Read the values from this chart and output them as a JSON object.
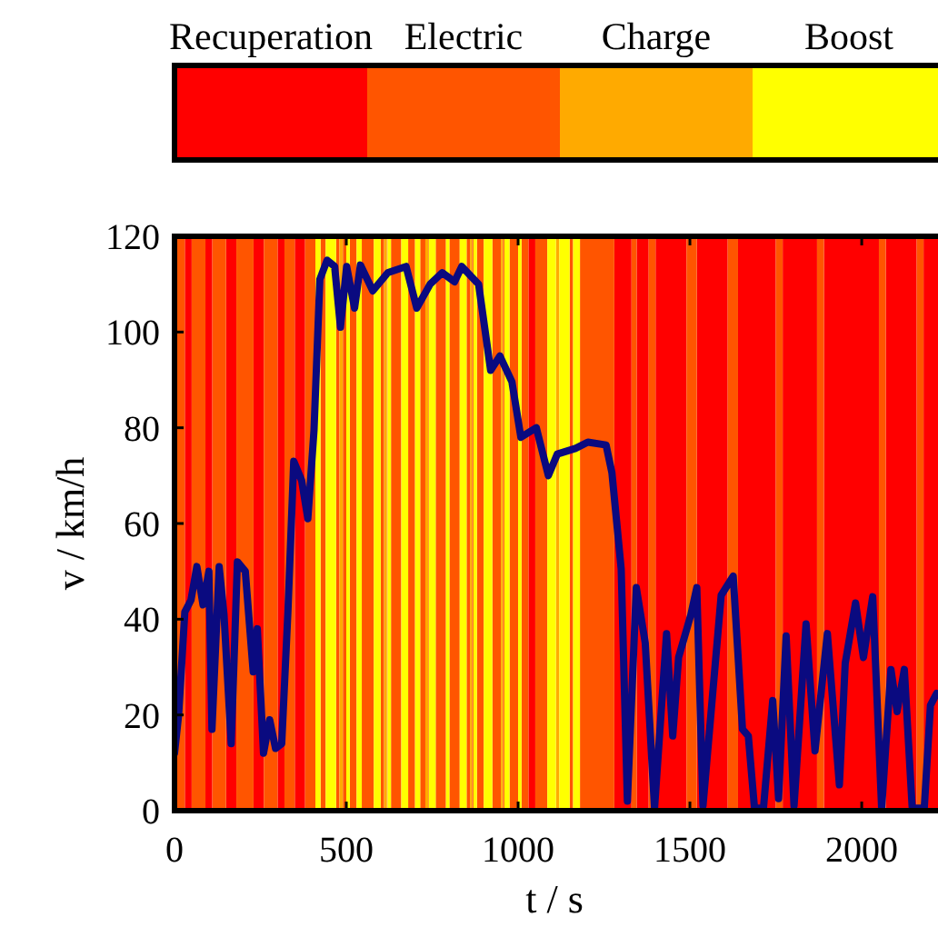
{
  "chart_data": {
    "type": "line",
    "xlabel": "t / s",
    "ylabel": "v / km/h",
    "xlim": [
      0,
      2222
    ],
    "ylim": [
      0,
      120
    ],
    "xticks": [
      0,
      500,
      1000,
      1500,
      2000
    ],
    "yticks": [
      0,
      20,
      40,
      60,
      80,
      100,
      120
    ],
    "line_style": "solid",
    "marker": "none",
    "clim": [
      0.5,
      4.5
    ],
    "cticks": [
      {
        "value": 1,
        "label": "Recuperation"
      },
      {
        "value": 2,
        "label": "Electric"
      },
      {
        "value": 3,
        "label": "Charge"
      },
      {
        "value": 4,
        "label": "Boost"
      }
    ],
    "colors": [
      "#ff0000",
      "#ff5500",
      "#ffaa00",
      "#ffff00"
    ],
    "series": [
      {
        "color": "#0a0a80",
        "x": [
          0,
          12,
          30,
          48,
          65,
          83,
          100,
          109,
          130,
          144,
          165,
          183,
          206,
          229,
          241,
          259,
          277,
          294,
          312,
          330,
          347,
          370,
          388,
          406,
          423,
          444,
          466,
          483,
          501,
          524,
          541,
          577,
          621,
          674,
          705,
          744,
          779,
          815,
          836,
          885,
          920,
          947,
          982,
          1008,
          1053,
          1088,
          1114,
          1167,
          1203,
          1256,
          1273,
          1300,
          1318,
          1344,
          1370,
          1397,
          1432,
          1450,
          1467,
          1503,
          1520,
          1538,
          1591,
          1626,
          1653,
          1670,
          1688,
          1714,
          1741,
          1758,
          1780,
          1803,
          1838,
          1864,
          1900,
          1935,
          1952,
          1982,
          2005,
          2032,
          2058,
          2085,
          2103,
          2124,
          2147,
          2182,
          2200,
          2218
        ],
        "values": [
          12,
          20,
          41.5,
          44,
          51,
          43,
          50,
          17,
          51,
          41,
          14,
          52,
          50,
          29,
          38,
          12,
          19,
          13,
          14,
          41.5,
          73,
          69,
          61,
          79.5,
          111,
          115,
          113.7,
          101,
          113.7,
          105,
          114,
          108.6,
          112.4,
          113.7,
          105,
          110,
          112.4,
          110.5,
          113.7,
          110,
          92,
          95,
          89.6,
          78,
          80,
          70,
          74.5,
          75.7,
          77,
          76.4,
          70.6,
          50.5,
          2,
          46.6,
          35,
          0.5,
          37,
          15.6,
          32,
          41,
          46.6,
          1,
          45,
          49,
          17,
          15.6,
          0.5,
          0.5,
          23,
          2.5,
          36.5,
          1,
          39,
          12.5,
          37,
          5.4,
          30.8,
          43.4,
          32,
          44.7,
          0.5,
          29.5,
          20.7,
          29.5,
          0.5,
          0.5,
          22,
          24.5
        ]
      }
    ],
    "bands": [
      {
        "axis": "x",
        "from": 30,
        "to": 50,
        "color": "#ff0000"
      },
      {
        "axis": "x",
        "from": 90,
        "to": 110,
        "color": "#ff0000"
      },
      {
        "axis": "x",
        "from": 150,
        "to": 180,
        "color": "#ff0000"
      },
      {
        "axis": "x",
        "from": 230,
        "to": 260,
        "color": "#ff0000"
      },
      {
        "axis": "x",
        "from": 300,
        "to": 320,
        "color": "#ff0000"
      },
      {
        "axis": "x",
        "from": 350,
        "to": 380,
        "color": "#ff0000"
      },
      {
        "axis": "x",
        "from": 1030,
        "to": 1050,
        "color": "#ff0000"
      },
      {
        "axis": "x",
        "from": 1280,
        "to": 1330,
        "color": "#ff0000"
      },
      {
        "axis": "x",
        "from": 1345,
        "to": 1380,
        "color": "#ff0000"
      },
      {
        "axis": "x",
        "from": 1400,
        "to": 1490,
        "color": "#ff0000"
      },
      {
        "axis": "x",
        "from": 1520,
        "to": 1610,
        "color": "#ff0000"
      },
      {
        "axis": "x",
        "from": 1640,
        "to": 1750,
        "color": "#ff0000"
      },
      {
        "axis": "x",
        "from": 1770,
        "to": 1870,
        "color": "#ff0000"
      },
      {
        "axis": "x",
        "from": 1890,
        "to": 2050,
        "color": "#ff0000"
      },
      {
        "axis": "x",
        "from": 2070,
        "to": 2160,
        "color": "#ff0000"
      },
      {
        "axis": "x",
        "from": 2180,
        "to": 2222,
        "color": "#ff0000"
      },
      {
        "axis": "x",
        "from": 0,
        "to": 30,
        "color": "#ff5500"
      },
      {
        "axis": "x",
        "from": 50,
        "to": 90,
        "color": "#ff5500"
      },
      {
        "axis": "x",
        "from": 110,
        "to": 150,
        "color": "#ff5500"
      },
      {
        "axis": "x",
        "from": 180,
        "to": 230,
        "color": "#ff5500"
      },
      {
        "axis": "x",
        "from": 260,
        "to": 300,
        "color": "#ff5500"
      },
      {
        "axis": "x",
        "from": 320,
        "to": 350,
        "color": "#ff5500"
      },
      {
        "axis": "x",
        "from": 380,
        "to": 410,
        "color": "#ff5500"
      },
      {
        "axis": "x",
        "from": 425,
        "to": 440,
        "color": "#ff5500"
      },
      {
        "axis": "x",
        "from": 470,
        "to": 480,
        "color": "#ff5500"
      },
      {
        "axis": "x",
        "from": 490,
        "to": 500,
        "color": "#ff5500"
      },
      {
        "axis": "x",
        "from": 510,
        "to": 530,
        "color": "#ff5500"
      },
      {
        "axis": "x",
        "from": 545,
        "to": 580,
        "color": "#ff5500"
      },
      {
        "axis": "x",
        "from": 600,
        "to": 610,
        "color": "#ff5500"
      },
      {
        "axis": "x",
        "from": 618,
        "to": 620,
        "color": "#ff5500"
      },
      {
        "axis": "x",
        "from": 630,
        "to": 660,
        "color": "#ff5500"
      },
      {
        "axis": "x",
        "from": 680,
        "to": 700,
        "color": "#ff5500"
      },
      {
        "axis": "x",
        "from": 715,
        "to": 730,
        "color": "#ff5500"
      },
      {
        "axis": "x",
        "from": 738,
        "to": 740,
        "color": "#ff5500"
      },
      {
        "axis": "x",
        "from": 760,
        "to": 790,
        "color": "#ff5500"
      },
      {
        "axis": "x",
        "from": 800,
        "to": 830,
        "color": "#ff5500"
      },
      {
        "axis": "x",
        "from": 850,
        "to": 860,
        "color": "#ff5500"
      },
      {
        "axis": "x",
        "from": 866,
        "to": 870,
        "color": "#ff5500"
      },
      {
        "axis": "x",
        "from": 880,
        "to": 900,
        "color": "#ff5500"
      },
      {
        "axis": "x",
        "from": 925,
        "to": 950,
        "color": "#ff5500"
      },
      {
        "axis": "x",
        "from": 956,
        "to": 960,
        "color": "#ff5500"
      },
      {
        "axis": "x",
        "from": 975,
        "to": 1000,
        "color": "#ff5500"
      },
      {
        "axis": "x",
        "from": 1010,
        "to": 1030,
        "color": "#ff5500"
      },
      {
        "axis": "x",
        "from": 1050,
        "to": 1085,
        "color": "#ff5500"
      },
      {
        "axis": "x",
        "from": 1150,
        "to": 1160,
        "color": "#ff5500"
      },
      {
        "axis": "x",
        "from": 1180,
        "to": 1280,
        "color": "#ff5500"
      },
      {
        "axis": "x",
        "from": 1330,
        "to": 1345,
        "color": "#ff5500"
      },
      {
        "axis": "x",
        "from": 1380,
        "to": 1400,
        "color": "#ff5500"
      },
      {
        "axis": "x",
        "from": 1490,
        "to": 1520,
        "color": "#ff5500"
      },
      {
        "axis": "x",
        "from": 1610,
        "to": 1640,
        "color": "#ff5500"
      },
      {
        "axis": "x",
        "from": 1750,
        "to": 1770,
        "color": "#ff5500"
      },
      {
        "axis": "x",
        "from": 1870,
        "to": 1890,
        "color": "#ff5500"
      },
      {
        "axis": "x",
        "from": 2050,
        "to": 2070,
        "color": "#ff5500"
      },
      {
        "axis": "x",
        "from": 2160,
        "to": 2180,
        "color": "#ff5500"
      },
      {
        "axis": "x",
        "from": 480,
        "to": 490,
        "color": "#ffaa00"
      },
      {
        "axis": "x",
        "from": 610,
        "to": 618,
        "color": "#ffaa00"
      },
      {
        "axis": "x",
        "from": 730,
        "to": 738,
        "color": "#ffaa00"
      },
      {
        "axis": "x",
        "from": 860,
        "to": 866,
        "color": "#ffaa00"
      },
      {
        "axis": "x",
        "from": 950,
        "to": 956,
        "color": "#ffaa00"
      },
      {
        "axis": "x",
        "from": 1110,
        "to": 1120,
        "color": "#ffaa00"
      },
      {
        "axis": "x",
        "from": 410,
        "to": 425,
        "color": "#ffff00"
      },
      {
        "axis": "x",
        "from": 440,
        "to": 470,
        "color": "#ffff00"
      },
      {
        "axis": "x",
        "from": 500,
        "to": 510,
        "color": "#ffff00"
      },
      {
        "axis": "x",
        "from": 530,
        "to": 545,
        "color": "#ffff00"
      },
      {
        "axis": "x",
        "from": 580,
        "to": 600,
        "color": "#ffff00"
      },
      {
        "axis": "x",
        "from": 620,
        "to": 630,
        "color": "#ffff00"
      },
      {
        "axis": "x",
        "from": 660,
        "to": 680,
        "color": "#ffff00"
      },
      {
        "axis": "x",
        "from": 700,
        "to": 715,
        "color": "#ffff00"
      },
      {
        "axis": "x",
        "from": 740,
        "to": 760,
        "color": "#ffff00"
      },
      {
        "axis": "x",
        "from": 790,
        "to": 800,
        "color": "#ffff00"
      },
      {
        "axis": "x",
        "from": 830,
        "to": 850,
        "color": "#ffff00"
      },
      {
        "axis": "x",
        "from": 870,
        "to": 880,
        "color": "#ffff00"
      },
      {
        "axis": "x",
        "from": 900,
        "to": 925,
        "color": "#ffff00"
      },
      {
        "axis": "x",
        "from": 960,
        "to": 975,
        "color": "#ffff00"
      },
      {
        "axis": "x",
        "from": 1000,
        "to": 1010,
        "color": "#ffff00"
      },
      {
        "axis": "x",
        "from": 1085,
        "to": 1110,
        "color": "#ffff00"
      },
      {
        "axis": "x",
        "from": 1120,
        "to": 1150,
        "color": "#ffff00"
      },
      {
        "axis": "x",
        "from": 1160,
        "to": 1180,
        "color": "#ffff00"
      }
    ]
  }
}
